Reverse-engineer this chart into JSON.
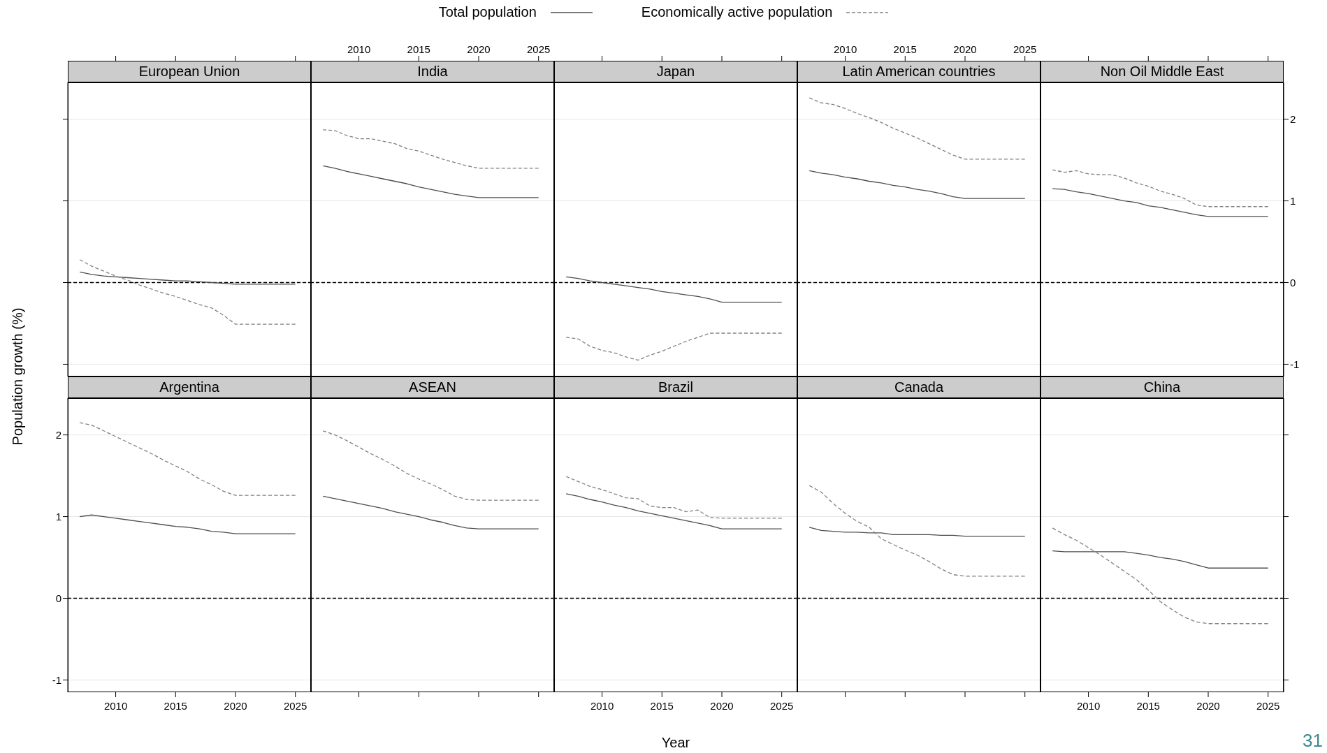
{
  "chart_data": [
    {
      "type": "line",
      "title": "European Union",
      "ylabel": "Population growth (%)",
      "legend": "top",
      "annotations": [
        "31"
      ],
      "x": [
        2007,
        2008,
        2009,
        2010,
        2011,
        2012,
        2013,
        2014,
        2015,
        2016,
        2017,
        2018,
        2019,
        2020,
        2021,
        2022,
        2023,
        2024,
        2025
      ],
      "xlim": [
        2006,
        2026.3
      ],
      "xticks": [
        2010,
        2015,
        2020,
        2025
      ],
      "ylim": [
        -1.15,
        2.45
      ],
      "yticks": [
        -1,
        0,
        1,
        2
      ],
      "grid": "y",
      "tick_labels": false,
      "ref_lines": [
        {
          "axis": "y",
          "value": 0,
          "color": "#000000",
          "line_style": "dashed"
        }
      ],
      "series": [
        {
          "name": "Total population",
          "color": "#4d4d4d",
          "line_style": "solid",
          "values": [
            0.13,
            0.1,
            0.08,
            0.07,
            0.06,
            0.05,
            0.04,
            0.03,
            0.02,
            0.02,
            0.01,
            0,
            -0.01,
            -0.02,
            -0.02,
            -0.02,
            -0.02,
            -0.02,
            -0.02
          ]
        },
        {
          "name": "Economically active population",
          "color": "#808080",
          "line_style": "dashed",
          "values": [
            0.28,
            0.2,
            0.14,
            0.08,
            0.03,
            -0.03,
            -0.08,
            -0.13,
            -0.17,
            -0.22,
            -0.27,
            -0.31,
            -0.4,
            -0.51,
            -0.51,
            -0.51,
            -0.51,
            -0.51,
            -0.51
          ]
        }
      ]
    },
    {
      "type": "line",
      "title": "India",
      "x": [
        2007,
        2008,
        2009,
        2010,
        2011,
        2012,
        2013,
        2014,
        2015,
        2016,
        2017,
        2018,
        2019,
        2020,
        2021,
        2022,
        2023,
        2024,
        2025
      ],
      "xlim": [
        2006,
        2026.3
      ],
      "xticks": [
        2010,
        2015,
        2020,
        2025
      ],
      "ylim": [
        -1.15,
        2.45
      ],
      "yticks": [
        -1,
        0,
        1,
        2
      ],
      "grid": "y",
      "tick_labels": "x",
      "ref_lines": [
        {
          "axis": "y",
          "value": 0,
          "color": "#000000",
          "line_style": "dashed"
        }
      ],
      "series": [
        {
          "color": "#4d4d4d",
          "line_style": "solid",
          "values": [
            1.43,
            1.4,
            1.36,
            1.33,
            1.3,
            1.27,
            1.24,
            1.21,
            1.17,
            1.14,
            1.11,
            1.08,
            1.06,
            1.04,
            1.04,
            1.04,
            1.04,
            1.04,
            1.04
          ]
        },
        {
          "color": "#808080",
          "line_style": "dashed",
          "values": [
            1.87,
            1.86,
            1.8,
            1.76,
            1.76,
            1.73,
            1.7,
            1.64,
            1.61,
            1.56,
            1.51,
            1.47,
            1.43,
            1.4,
            1.4,
            1.4,
            1.4,
            1.4,
            1.4
          ]
        }
      ]
    },
    {
      "type": "line",
      "title": "Japan",
      "x": [
        2007,
        2008,
        2009,
        2010,
        2011,
        2012,
        2013,
        2014,
        2015,
        2016,
        2017,
        2018,
        2019,
        2020,
        2021,
        2022,
        2023,
        2024,
        2025
      ],
      "xlim": [
        2006,
        2026.3
      ],
      "xticks": [
        2010,
        2015,
        2020,
        2025
      ],
      "ylim": [
        -1.15,
        2.45
      ],
      "yticks": [
        -1,
        0,
        1,
        2
      ],
      "grid": "y",
      "tick_labels": false,
      "ref_lines": [
        {
          "axis": "y",
          "value": 0,
          "color": "#000000",
          "line_style": "dashed"
        }
      ],
      "series": [
        {
          "color": "#4d4d4d",
          "line_style": "solid",
          "values": [
            0.07,
            0.05,
            0.02,
            0,
            -0.02,
            -0.04,
            -0.06,
            -0.08,
            -0.11,
            -0.13,
            -0.15,
            -0.17,
            -0.2,
            -0.24,
            -0.24,
            -0.24,
            -0.24,
            -0.24,
            -0.24
          ]
        },
        {
          "color": "#808080",
          "line_style": "dashed",
          "values": [
            -0.67,
            -0.69,
            -0.78,
            -0.83,
            -0.86,
            -0.91,
            -0.95,
            -0.89,
            -0.84,
            -0.78,
            -0.72,
            -0.67,
            -0.62,
            -0.62,
            -0.62,
            -0.62,
            -0.62,
            -0.62,
            -0.62
          ]
        }
      ]
    },
    {
      "type": "line",
      "title": "Latin American countries",
      "x": [
        2007,
        2008,
        2009,
        2010,
        2011,
        2012,
        2013,
        2014,
        2015,
        2016,
        2017,
        2018,
        2019,
        2020,
        2021,
        2022,
        2023,
        2024,
        2025
      ],
      "xlim": [
        2006,
        2026.3
      ],
      "xticks": [
        2010,
        2015,
        2020,
        2025
      ],
      "ylim": [
        -1.15,
        2.45
      ],
      "yticks": [
        -1,
        0,
        1,
        2
      ],
      "grid": "y",
      "tick_labels": "x",
      "ref_lines": [
        {
          "axis": "y",
          "value": 0,
          "color": "#000000",
          "line_style": "dashed"
        }
      ],
      "series": [
        {
          "color": "#4d4d4d",
          "line_style": "solid",
          "values": [
            1.37,
            1.34,
            1.32,
            1.29,
            1.27,
            1.24,
            1.22,
            1.19,
            1.17,
            1.14,
            1.12,
            1.09,
            1.05,
            1.03,
            1.03,
            1.03,
            1.03,
            1.03,
            1.03
          ]
        },
        {
          "color": "#808080",
          "line_style": "dashed",
          "values": [
            2.26,
            2.2,
            2.18,
            2.13,
            2.07,
            2.02,
            1.96,
            1.89,
            1.83,
            1.77,
            1.7,
            1.63,
            1.56,
            1.51,
            1.51,
            1.51,
            1.51,
            1.51,
            1.51
          ]
        }
      ]
    },
    {
      "type": "line",
      "title": "Non Oil Middle East",
      "x": [
        2007,
        2008,
        2009,
        2010,
        2011,
        2012,
        2013,
        2014,
        2015,
        2016,
        2017,
        2018,
        2019,
        2020,
        2021,
        2022,
        2023,
        2024,
        2025
      ],
      "xlim": [
        2006,
        2026.3
      ],
      "xticks": [
        2010,
        2015,
        2020,
        2025
      ],
      "ylim": [
        -1.15,
        2.45
      ],
      "yticks": [
        -1,
        0,
        1,
        2
      ],
      "grid": "y",
      "tick_labels": "y",
      "ref_lines": [
        {
          "axis": "y",
          "value": 0,
          "color": "#000000",
          "line_style": "dashed"
        }
      ],
      "series": [
        {
          "color": "#4d4d4d",
          "line_style": "solid",
          "values": [
            1.15,
            1.14,
            1.11,
            1.09,
            1.06,
            1.03,
            1.0,
            0.98,
            0.94,
            0.92,
            0.89,
            0.86,
            0.83,
            0.81,
            0.81,
            0.81,
            0.81,
            0.81,
            0.81
          ]
        },
        {
          "color": "#808080",
          "line_style": "dashed",
          "values": [
            1.38,
            1.35,
            1.37,
            1.33,
            1.32,
            1.32,
            1.28,
            1.22,
            1.18,
            1.12,
            1.08,
            1.03,
            0.95,
            0.93,
            0.93,
            0.93,
            0.93,
            0.93,
            0.93
          ]
        }
      ]
    },
    {
      "type": "line",
      "title": "Argentina",
      "x": [
        2007,
        2008,
        2009,
        2010,
        2011,
        2012,
        2013,
        2014,
        2015,
        2016,
        2017,
        2018,
        2019,
        2020,
        2021,
        2022,
        2023,
        2024,
        2025
      ],
      "xlim": [
        2006,
        2026.3
      ],
      "xticks": [
        2010,
        2015,
        2020,
        2025
      ],
      "ylim": [
        -1.15,
        2.45
      ],
      "yticks": [
        -1,
        0,
        1,
        2
      ],
      "grid": "y",
      "ref_lines": [
        {
          "axis": "y",
          "value": 0,
          "color": "#000000",
          "line_style": "dashed"
        }
      ],
      "series": [
        {
          "color": "#4d4d4d",
          "line_style": "solid",
          "values": [
            1.0,
            1.02,
            1.0,
            0.98,
            0.96,
            0.94,
            0.92,
            0.9,
            0.88,
            0.87,
            0.85,
            0.82,
            0.81,
            0.79,
            0.79,
            0.79,
            0.79,
            0.79,
            0.79
          ]
        },
        {
          "color": "#808080",
          "line_style": "dashed",
          "values": [
            2.15,
            2.12,
            2.05,
            1.98,
            1.91,
            1.84,
            1.77,
            1.69,
            1.62,
            1.55,
            1.46,
            1.39,
            1.31,
            1.26,
            1.26,
            1.26,
            1.26,
            1.26,
            1.26
          ]
        }
      ]
    },
    {
      "type": "line",
      "title": "ASEAN",
      "x": [
        2007,
        2008,
        2009,
        2010,
        2011,
        2012,
        2013,
        2014,
        2015,
        2016,
        2017,
        2018,
        2019,
        2020,
        2021,
        2022,
        2023,
        2024,
        2025
      ],
      "xlim": [
        2006,
        2026.3
      ],
      "xticks": [
        2010,
        2015,
        2020,
        2025
      ],
      "ylim": [
        -1.15,
        2.45
      ],
      "yticks": [
        -1,
        0,
        1,
        2
      ],
      "grid": "y",
      "tick_labels": false,
      "ref_lines": [
        {
          "axis": "y",
          "value": 0,
          "color": "#000000",
          "line_style": "dashed"
        }
      ],
      "series": [
        {
          "color": "#4d4d4d",
          "line_style": "solid",
          "values": [
            1.25,
            1.22,
            1.19,
            1.16,
            1.13,
            1.1,
            1.06,
            1.03,
            1.0,
            0.96,
            0.93,
            0.89,
            0.86,
            0.85,
            0.85,
            0.85,
            0.85,
            0.85,
            0.85
          ]
        },
        {
          "color": "#808080",
          "line_style": "dashed",
          "values": [
            2.05,
            2.0,
            1.93,
            1.85,
            1.77,
            1.7,
            1.62,
            1.53,
            1.46,
            1.4,
            1.33,
            1.25,
            1.21,
            1.2,
            1.2,
            1.2,
            1.2,
            1.2,
            1.2
          ]
        }
      ]
    },
    {
      "type": "line",
      "title": "Brazil",
      "xlabel": "Year",
      "x": [
        2007,
        2008,
        2009,
        2010,
        2011,
        2012,
        2013,
        2014,
        2015,
        2016,
        2017,
        2018,
        2019,
        2020,
        2021,
        2022,
        2023,
        2024,
        2025
      ],
      "xlim": [
        2006,
        2026.3
      ],
      "xticks": [
        2010,
        2015,
        2020,
        2025
      ],
      "ylim": [
        -1.15,
        2.45
      ],
      "yticks": [
        -1,
        0,
        1,
        2
      ],
      "grid": "y",
      "tick_labels": "x",
      "ref_lines": [
        {
          "axis": "y",
          "value": 0,
          "color": "#000000",
          "line_style": "dashed"
        }
      ],
      "series": [
        {
          "color": "#4d4d4d",
          "line_style": "solid",
          "values": [
            1.28,
            1.25,
            1.21,
            1.18,
            1.14,
            1.11,
            1.07,
            1.04,
            1.01,
            0.98,
            0.95,
            0.92,
            0.89,
            0.85,
            0.85,
            0.85,
            0.85,
            0.85,
            0.85
          ]
        },
        {
          "color": "#808080",
          "line_style": "dashed",
          "values": [
            1.49,
            1.43,
            1.37,
            1.33,
            1.28,
            1.23,
            1.22,
            1.13,
            1.11,
            1.11,
            1.06,
            1.08,
            0.99,
            0.98,
            0.98,
            0.98,
            0.98,
            0.98,
            0.98
          ]
        }
      ]
    },
    {
      "type": "line",
      "title": "Canada",
      "x": [
        2007,
        2008,
        2009,
        2010,
        2011,
        2012,
        2013,
        2014,
        2015,
        2016,
        2017,
        2018,
        2019,
        2020,
        2021,
        2022,
        2023,
        2024,
        2025
      ],
      "xlim": [
        2006,
        2026.3
      ],
      "xticks": [
        2010,
        2015,
        2020,
        2025
      ],
      "ylim": [
        -1.15,
        2.45
      ],
      "yticks": [
        -1,
        0,
        1,
        2
      ],
      "grid": "y",
      "tick_labels": false,
      "ref_lines": [
        {
          "axis": "y",
          "value": 0,
          "color": "#000000",
          "line_style": "dashed"
        }
      ],
      "series": [
        {
          "color": "#4d4d4d",
          "line_style": "solid",
          "values": [
            0.87,
            0.83,
            0.82,
            0.81,
            0.81,
            0.8,
            0.8,
            0.78,
            0.78,
            0.78,
            0.78,
            0.77,
            0.77,
            0.76,
            0.76,
            0.76,
            0.76,
            0.76,
            0.76
          ]
        },
        {
          "color": "#808080",
          "line_style": "dashed",
          "values": [
            1.38,
            1.3,
            1.16,
            1.04,
            0.94,
            0.87,
            0.73,
            0.66,
            0.59,
            0.53,
            0.45,
            0.36,
            0.29,
            0.27,
            0.27,
            0.27,
            0.27,
            0.27,
            0.27
          ]
        }
      ]
    },
    {
      "type": "line",
      "title": "China",
      "x": [
        2007,
        2008,
        2009,
        2010,
        2011,
        2012,
        2013,
        2014,
        2015,
        2016,
        2017,
        2018,
        2019,
        2020,
        2021,
        2022,
        2023,
        2024,
        2025
      ],
      "xlim": [
        2006,
        2026.3
      ],
      "xticks": [
        2010,
        2015,
        2020,
        2025
      ],
      "ylim": [
        -1.15,
        2.45
      ],
      "yticks": [
        -1,
        0,
        1,
        2
      ],
      "grid": "y",
      "tick_labels": "x",
      "ref_lines": [
        {
          "axis": "y",
          "value": 0,
          "color": "#000000",
          "line_style": "dashed"
        }
      ],
      "series": [
        {
          "color": "#4d4d4d",
          "line_style": "solid",
          "values": [
            0.58,
            0.57,
            0.57,
            0.57,
            0.57,
            0.57,
            0.57,
            0.55,
            0.53,
            0.5,
            0.48,
            0.45,
            0.41,
            0.37,
            0.37,
            0.37,
            0.37,
            0.37,
            0.37
          ]
        },
        {
          "color": "#808080",
          "line_style": "dashed",
          "values": [
            0.86,
            0.78,
            0.71,
            0.62,
            0.53,
            0.43,
            0.33,
            0.23,
            0.1,
            -0.04,
            -0.14,
            -0.23,
            -0.29,
            -0.31,
            -0.31,
            -0.31,
            -0.31,
            -0.31,
            -0.31
          ]
        }
      ]
    }
  ]
}
